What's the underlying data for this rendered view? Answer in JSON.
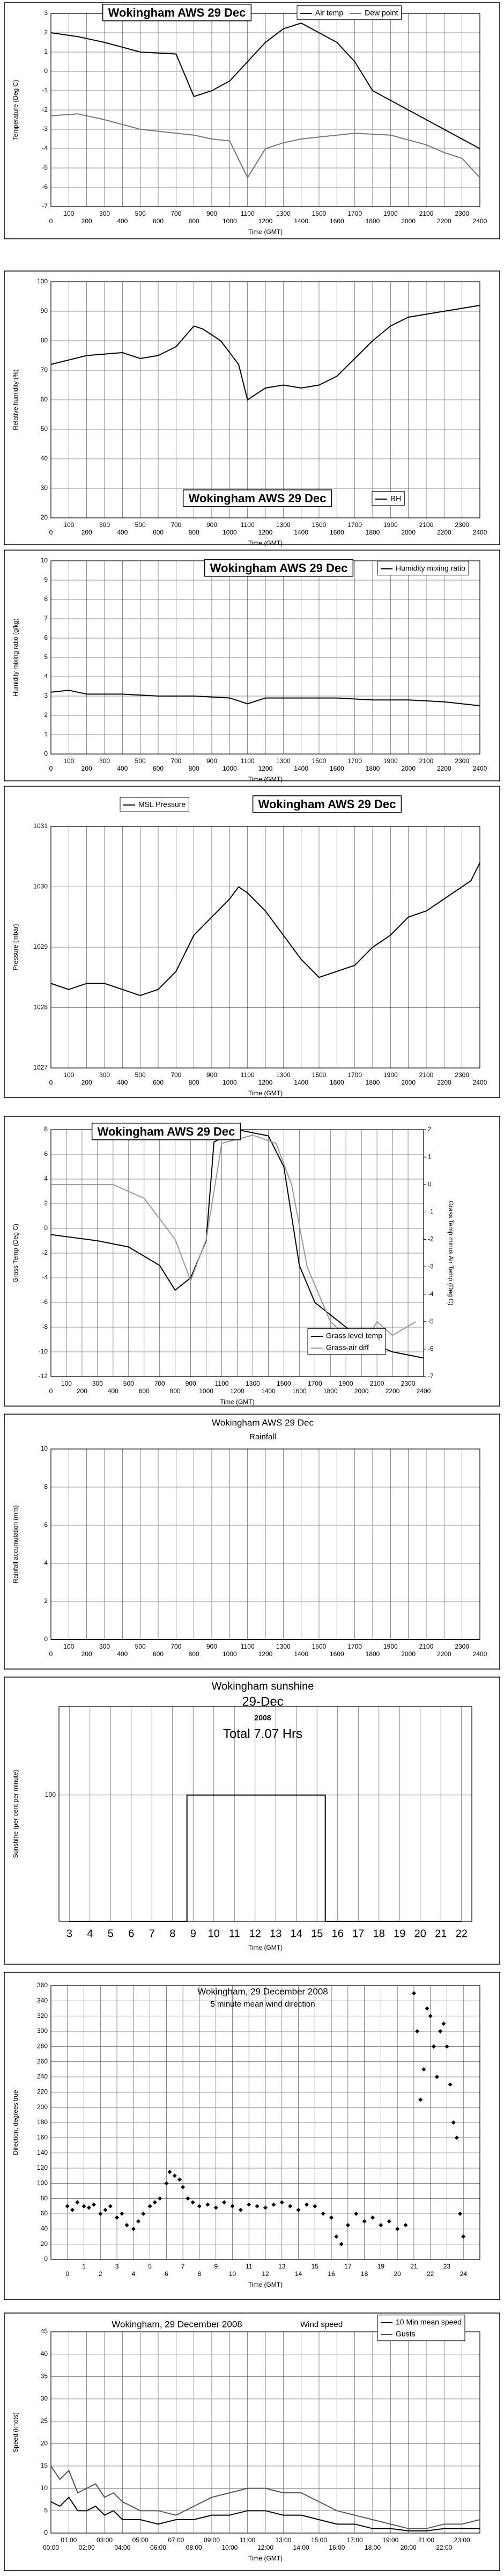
{
  "chart_data": [
    {
      "type": "line",
      "title": "Wokingham AWS 29 Dec",
      "xlabel": "Time (GMT)",
      "ylabel": "Temperature (Deg C)",
      "grid": true,
      "xlim": [
        0,
        2400
      ],
      "xticks": [
        0,
        100,
        200,
        300,
        400,
        500,
        600,
        700,
        800,
        900,
        1000,
        1100,
        1200,
        1300,
        1400,
        1500,
        1600,
        1700,
        1800,
        1900,
        2000,
        2100,
        2200,
        2300,
        2400
      ],
      "ylim": [
        -7,
        3
      ],
      "yticks": [
        -7,
        -6,
        -5,
        -4,
        -3,
        -2,
        -1,
        0,
        1,
        2,
        3
      ],
      "series": [
        {
          "name": "Air temp",
          "color": "#000000",
          "x": [
            0,
            150,
            300,
            500,
            700,
            800,
            900,
            1000,
            1100,
            1200,
            1300,
            1400,
            1500,
            1600,
            1700,
            1800,
            1900,
            2000,
            2100,
            2200,
            2300,
            2400
          ],
          "values": [
            2,
            1.8,
            1.5,
            1,
            0.9,
            -1.3,
            -1,
            -0.5,
            0.5,
            1.5,
            2.2,
            2.5,
            2,
            1.5,
            0.5,
            -1,
            -1.5,
            -2,
            -2.5,
            -3,
            -3.5,
            -4
          ]
        },
        {
          "name": "Dew point",
          "color": "#777777",
          "x": [
            0,
            150,
            300,
            500,
            700,
            800,
            900,
            1000,
            1100,
            1200,
            1300,
            1400,
            1500,
            1700,
            1900,
            2100,
            2200,
            2300,
            2400
          ],
          "values": [
            -2.3,
            -2.2,
            -2.5,
            -3,
            -3.2,
            -3.3,
            -3.5,
            -3.6,
            -5.5,
            -4,
            -3.7,
            -3.5,
            -3.4,
            -3.2,
            -3.3,
            -3.8,
            -4.2,
            -4.5,
            -5.5
          ]
        }
      ]
    },
    {
      "type": "line",
      "title": "Wokingham AWS 29 Dec",
      "xlabel": "Time (GMT)",
      "ylabel": "Relative humidity (%)",
      "grid": true,
      "xlim": [
        0,
        2400
      ],
      "xticks": [
        0,
        100,
        200,
        300,
        400,
        500,
        600,
        700,
        800,
        900,
        1000,
        1100,
        1200,
        1300,
        1400,
        1500,
        1600,
        1700,
        1800,
        1900,
        2000,
        2100,
        2200,
        2300,
        2400
      ],
      "ylim": [
        20,
        100
      ],
      "yticks": [
        20,
        30,
        40,
        50,
        60,
        70,
        80,
        90,
        100
      ],
      "series": [
        {
          "name": "RH",
          "color": "#000000",
          "x": [
            0,
            200,
            400,
            500,
            600,
            700,
            800,
            850,
            950,
            1050,
            1100,
            1200,
            1300,
            1400,
            1500,
            1600,
            1700,
            1800,
            1900,
            2000,
            2100,
            2200,
            2300,
            2400
          ],
          "values": [
            72,
            75,
            76,
            74,
            75,
            78,
            85,
            84,
            80,
            72,
            60,
            64,
            65,
            64,
            65,
            68,
            74,
            80,
            85,
            88,
            89,
            90,
            91,
            92
          ]
        }
      ]
    },
    {
      "type": "line",
      "title": "Wokingham AWS 29 Dec",
      "xlabel": "Time (GMT)",
      "ylabel": "Humidity mixing ratio (g/kg)",
      "grid": true,
      "xlim": [
        0,
        2400
      ],
      "xticks": [
        0,
        100,
        200,
        300,
        400,
        500,
        600,
        700,
        800,
        900,
        1000,
        1100,
        1200,
        1300,
        1400,
        1500,
        1600,
        1700,
        1800,
        1900,
        2000,
        2100,
        2200,
        2300,
        2400
      ],
      "ylim": [
        0,
        10
      ],
      "yticks": [
        0,
        1,
        2,
        3,
        4,
        5,
        6,
        7,
        8,
        9,
        10
      ],
      "series": [
        {
          "name": "Humidity mixing ratio",
          "color": "#000000",
          "x": [
            0,
            100,
            200,
            400,
            600,
            800,
            1000,
            1100,
            1200,
            1400,
            1600,
            1800,
            2000,
            2200,
            2300,
            2400
          ],
          "values": [
            3.2,
            3.3,
            3.1,
            3.1,
            3.0,
            3.0,
            2.9,
            2.6,
            2.9,
            2.9,
            2.9,
            2.8,
            2.8,
            2.7,
            2.6,
            2.5
          ]
        }
      ]
    },
    {
      "type": "line",
      "title": "Wokingham AWS 29 Dec",
      "xlabel": "Time (GMT)",
      "ylabel": "Pressure (mbar)",
      "grid": true,
      "xlim": [
        0,
        2400
      ],
      "xticks": [
        0,
        100,
        200,
        300,
        400,
        500,
        600,
        700,
        800,
        900,
        1000,
        1100,
        1200,
        1300,
        1400,
        1500,
        1600,
        1700,
        1800,
        1900,
        2000,
        2100,
        2200,
        2300,
        2400
      ],
      "ylim": [
        1027,
        1031
      ],
      "yticks": [
        1027,
        1028,
        1029,
        1030,
        1031
      ],
      "series": [
        {
          "name": "MSL Pressure",
          "color": "#000000",
          "x": [
            0,
            100,
            200,
            300,
            400,
            500,
            600,
            700,
            800,
            900,
            1000,
            1050,
            1100,
            1200,
            1300,
            1400,
            1500,
            1600,
            1700,
            1800,
            1900,
            2000,
            2100,
            2200,
            2300,
            2350,
            2400
          ],
          "values": [
            1028.4,
            1028.3,
            1028.4,
            1028.4,
            1028.3,
            1028.2,
            1028.3,
            1028.6,
            1029.2,
            1029.5,
            1029.8,
            1030,
            1029.9,
            1029.6,
            1029.2,
            1028.8,
            1028.5,
            1028.6,
            1028.7,
            1029.0,
            1029.2,
            1029.5,
            1029.6,
            1029.8,
            1030,
            1030.1,
            1030.4
          ]
        }
      ]
    },
    {
      "type": "line",
      "title": "Wokingham AWS 29 Dec",
      "xlabel": "Time (GMT)",
      "ylabel": "Grass Temp (Deg C)",
      "y2label": "Grass Temp minus Air Temp (Deg C)",
      "grid": true,
      "xlim": [
        0,
        2400
      ],
      "xticks": [
        0,
        100,
        200,
        300,
        400,
        500,
        600,
        700,
        800,
        900,
        1000,
        1100,
        1200,
        1300,
        1400,
        1500,
        1600,
        1700,
        1800,
        1900,
        2000,
        2100,
        2200,
        2300,
        2400
      ],
      "ylim": [
        -12,
        8
      ],
      "yticks": [
        -12,
        -10,
        -8,
        -6,
        -4,
        -2,
        0,
        2,
        4,
        6,
        8
      ],
      "y2lim": [
        -7,
        2
      ],
      "y2ticks": [
        -7,
        -6,
        -5,
        -4,
        -3,
        -2,
        -1,
        0,
        1,
        2
      ],
      "series": [
        {
          "name": "Grass level temp",
          "color": "#000000",
          "x": [
            0,
            300,
            500,
            700,
            800,
            900,
            1000,
            1050,
            1200,
            1400,
            1500,
            1600,
            1700,
            1900,
            2000,
            2200,
            2400
          ],
          "values": [
            -0.5,
            -1,
            -1.5,
            -3,
            -5,
            -4,
            -1,
            7,
            8,
            7.5,
            5,
            -3,
            -6,
            -8,
            -9,
            -10,
            -10.5
          ]
        },
        {
          "name": "Grass-air diff",
          "color": "#999999",
          "axis": "y2",
          "x": [
            0,
            400,
            600,
            800,
            900,
            1000,
            1100,
            1300,
            1450,
            1550,
            1650,
            1800,
            1900,
            2000,
            2100,
            2200,
            2350
          ],
          "values": [
            0,
            0,
            -0.5,
            -2,
            -3.5,
            -2,
            1.5,
            1.8,
            1.5,
            0,
            -3,
            -5,
            -5.5,
            -6,
            -5,
            -5.5,
            -5
          ]
        }
      ]
    },
    {
      "type": "line",
      "title": "Wokingham AWS 29 Dec",
      "subtitle": "Rainfall",
      "ylabel": "Rainfall accumulation (mm)",
      "grid": true,
      "xlim": [
        0,
        2400
      ],
      "xticks": [
        0,
        100,
        200,
        300,
        400,
        500,
        600,
        700,
        800,
        900,
        1000,
        1100,
        1200,
        1300,
        1400,
        1500,
        1600,
        1700,
        1800,
        1900,
        2000,
        2100,
        2200,
        2300,
        2400
      ],
      "ylim": [
        0,
        10
      ],
      "yticks": [
        0,
        2,
        4,
        6,
        8,
        10
      ],
      "series": [
        {
          "color": "#000000",
          "x": [
            0,
            2400
          ],
          "values": [
            0,
            0
          ]
        }
      ]
    },
    {
      "type": "line",
      "title": "Wokingham sunshine",
      "subtitle": "29-Dec",
      "annotations": [
        "2008",
        "Total 7.07 Hrs"
      ],
      "xlabel": "Time (GMT)",
      "ylabel": "Sunshine (per cent per minute)",
      "grid": true,
      "xlim": [
        2.5,
        22.5
      ],
      "xticks": [
        3,
        4,
        5,
        6,
        7,
        8,
        9,
        10,
        11,
        12,
        13,
        14,
        15,
        16,
        17,
        18,
        19,
        20,
        21,
        22
      ],
      "ylim": [
        0,
        170
      ],
      "yticks": [
        100
      ],
      "series": [
        {
          "color": "#000000",
          "x": [
            3,
            8.7,
            8.7,
            15.4,
            15.4,
            22
          ],
          "values": [
            0,
            0,
            100,
            100,
            0,
            0
          ]
        }
      ]
    },
    {
      "type": "scatter",
      "title": "Wokingham,  29 December 2008",
      "subtitle": "5 minute mean wind direction",
      "xlabel": "Time (GMT)",
      "ylabel": "Direction, degrees true",
      "grid": true,
      "xlim": [
        -1,
        25
      ],
      "xticks": [
        0,
        1,
        2,
        3,
        4,
        5,
        6,
        7,
        8,
        9,
        10,
        11,
        12,
        13,
        14,
        15,
        16,
        17,
        18,
        19,
        20,
        21,
        22,
        23,
        24
      ],
      "ylim": [
        0,
        360
      ],
      "yticks": [
        0,
        20,
        40,
        60,
        80,
        100,
        120,
        140,
        160,
        180,
        200,
        220,
        240,
        260,
        280,
        300,
        320,
        340,
        360
      ],
      "series": [
        {
          "color": "#000000",
          "x": [
            0,
            0.3,
            0.6,
            1,
            1.3,
            1.6,
            2,
            2.3,
            2.6,
            3,
            3.3,
            3.6,
            4,
            4.3,
            4.6,
            5,
            5.3,
            5.6,
            6,
            6.2,
            6.5,
            6.8,
            7,
            7.3,
            7.6,
            8,
            8.5,
            9,
            9.5,
            10,
            10.5,
            11,
            11.5,
            12,
            12.5,
            13,
            13.5,
            14,
            14.5,
            15,
            15.5,
            16,
            16.3,
            16.6,
            17,
            17.5,
            18,
            18.5,
            19,
            19.5,
            20,
            20.5,
            21,
            21.2,
            21.4,
            21.6,
            21.8,
            22,
            22.2,
            22.4,
            22.6,
            22.8,
            23,
            23.2,
            23.4,
            23.6,
            23.8,
            24
          ],
          "values": [
            70,
            65,
            75,
            70,
            68,
            72,
            60,
            65,
            70,
            55,
            60,
            45,
            40,
            50,
            60,
            70,
            75,
            80,
            100,
            115,
            110,
            105,
            95,
            80,
            75,
            70,
            72,
            68,
            75,
            70,
            65,
            72,
            70,
            68,
            72,
            75,
            70,
            65,
            72,
            70,
            60,
            55,
            30,
            20,
            45,
            60,
            50,
            55,
            45,
            50,
            40,
            45,
            350,
            300,
            210,
            250,
            330,
            320,
            280,
            240,
            300,
            310,
            280,
            230,
            180,
            160,
            60,
            30
          ]
        }
      ]
    },
    {
      "type": "line",
      "title": "Wokingham,  29 December 2008",
      "subtitle": "Wind speed",
      "xlabel": "Time (GMT)",
      "ylabel": "Speed (knots)",
      "grid": true,
      "xlim": [
        0,
        24
      ],
      "xticks": [
        {
          "value": 0,
          "label": "00:00"
        },
        {
          "value": 1,
          "label": "01:00"
        },
        {
          "value": 2,
          "label": "02:00"
        },
        {
          "value": 3,
          "label": "03:00"
        },
        {
          "value": 4,
          "label": "04:00"
        },
        {
          "value": 5,
          "label": "05:00"
        },
        {
          "value": 6,
          "label": "06:00"
        },
        {
          "value": 7,
          "label": "07:00"
        },
        {
          "value": 8,
          "label": "08:00"
        },
        {
          "value": 9,
          "label": "09:00"
        },
        {
          "value": 10,
          "label": "10:00"
        },
        {
          "value": 11,
          "label": "11:00"
        },
        {
          "value": 12,
          "label": "12:00"
        },
        {
          "value": 13,
          "label": "13:00"
        },
        {
          "value": 14,
          "label": "14:00"
        },
        {
          "value": 15,
          "label": "15:00"
        },
        {
          "value": 16,
          "label": "16:00"
        },
        {
          "value": 17,
          "label": "17:00"
        },
        {
          "value": 18,
          "label": "18:00"
        },
        {
          "value": 19,
          "label": "19:00"
        },
        {
          "value": 20,
          "label": "20:00"
        },
        {
          "value": 21,
          "label": "21:00"
        },
        {
          "value": 22,
          "label": "22:00"
        },
        {
          "value": 23,
          "label": "23:00"
        }
      ],
      "ylim": [
        0,
        45
      ],
      "yticks": [
        0,
        5,
        10,
        15,
        20,
        25,
        30,
        35,
        40,
        45
      ],
      "series": [
        {
          "name": "10 Min mean speed",
          "color": "#000000",
          "x": [
            0,
            0.5,
            1,
            1.5,
            2,
            2.5,
            3,
            3.5,
            4,
            5,
            6,
            7,
            8,
            9,
            10,
            11,
            12,
            13,
            14,
            15,
            16,
            17,
            18,
            19,
            20,
            21,
            22,
            23,
            24
          ],
          "values": [
            7,
            6,
            8,
            5,
            5,
            6,
            4,
            5,
            3,
            3,
            2,
            3,
            3,
            4,
            4,
            5,
            5,
            4,
            4,
            3,
            2,
            2,
            1,
            1,
            0.5,
            0.5,
            1,
            1,
            1
          ]
        },
        {
          "name": "Gusts",
          "color": "#555555",
          "x": [
            0,
            0.5,
            1,
            1.5,
            2,
            2.5,
            3,
            3.5,
            4,
            5,
            6,
            7,
            8,
            9,
            10,
            11,
            12,
            13,
            14,
            15,
            16,
            17,
            18,
            19,
            20,
            21,
            22,
            23,
            24
          ],
          "values": [
            15,
            12,
            14,
            9,
            10,
            11,
            8,
            9,
            7,
            5,
            5,
            4,
            6,
            8,
            9,
            10,
            10,
            9,
            9,
            7,
            5,
            4,
            3,
            2,
            1,
            1,
            2,
            2,
            3
          ]
        }
      ]
    }
  ]
}
